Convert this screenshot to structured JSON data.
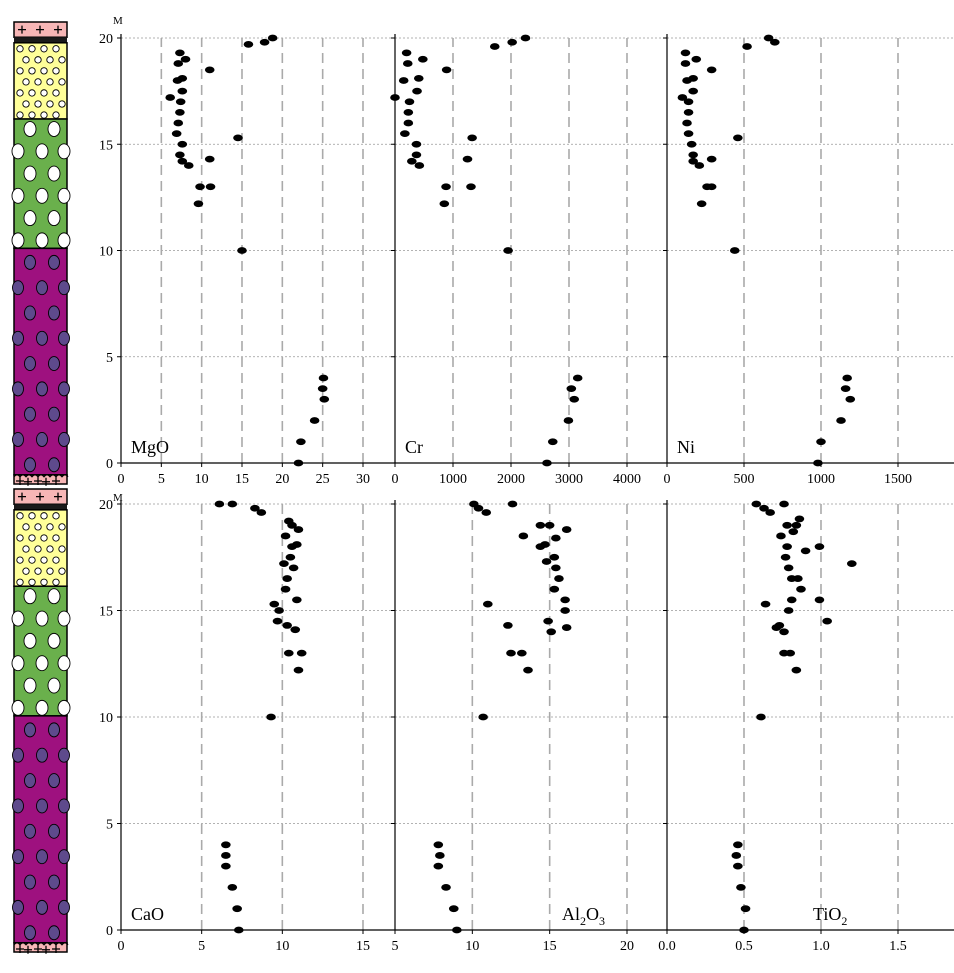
{
  "depth_unit": "M",
  "colors": {
    "grid": "#aaaaaa",
    "ygrid": "#999999",
    "point": "#000000",
    "granite": "#f7b6b6",
    "dark_band": "#1a1a1a",
    "yellow": "#ffff99",
    "green": "#6ab04c",
    "magenta": "#9e117f",
    "magenta_dot": "#5e4a8c"
  },
  "chart_data": [
    {
      "type": "scatter",
      "label": "MgO",
      "xlim": [
        0,
        30
      ],
      "xticks": [
        0,
        5,
        10,
        15,
        20,
        25,
        30
      ],
      "xtick_labels": [
        "0",
        "5",
        "10",
        "15",
        "20",
        "25",
        "30"
      ],
      "ylim": [
        0,
        20
      ],
      "yticks": [
        0,
        5,
        10,
        15,
        20
      ],
      "points": [
        [
          22,
          0
        ],
        [
          22.3,
          1
        ],
        [
          24,
          2
        ],
        [
          25.2,
          3
        ],
        [
          25,
          3.5
        ],
        [
          25.1,
          4
        ],
        [
          15,
          10
        ],
        [
          9.6,
          12.2
        ],
        [
          9.8,
          13
        ],
        [
          11.1,
          13
        ],
        [
          8.4,
          14
        ],
        [
          7.6,
          14.2
        ],
        [
          11,
          14.3
        ],
        [
          7.3,
          14.5
        ],
        [
          7.6,
          15
        ],
        [
          14.5,
          15.3
        ],
        [
          6.9,
          15.5
        ],
        [
          7.1,
          16
        ],
        [
          7.3,
          16.5
        ],
        [
          7.4,
          17
        ],
        [
          6.1,
          17.2
        ],
        [
          7.6,
          17.5
        ],
        [
          7,
          18
        ],
        [
          7.6,
          18.1
        ],
        [
          11,
          18.5
        ],
        [
          7.1,
          18.8
        ],
        [
          8,
          19
        ],
        [
          7.3,
          19.3
        ],
        [
          15.8,
          19.7
        ],
        [
          17.8,
          19.8
        ],
        [
          18.8,
          20
        ]
      ]
    },
    {
      "type": "scatter",
      "label": "Cr",
      "xlim": [
        0,
        4000
      ],
      "xticks": [
        0,
        1000,
        2000,
        3000,
        4000
      ],
      "xtick_labels": [
        "0",
        "1000",
        "2000",
        "3000",
        "4000"
      ],
      "ylim": [
        0,
        20
      ],
      "yticks": [
        0,
        5,
        10,
        15,
        20
      ],
      "points": [
        [
          2620,
          0
        ],
        [
          2720,
          1
        ],
        [
          2990,
          2
        ],
        [
          3090,
          3
        ],
        [
          3040,
          3.5
        ],
        [
          3150,
          4
        ],
        [
          1950,
          10
        ],
        [
          850,
          12.2
        ],
        [
          880,
          13
        ],
        [
          1310,
          13
        ],
        [
          420,
          14
        ],
        [
          290,
          14.2
        ],
        [
          1250,
          14.3
        ],
        [
          370,
          14.5
        ],
        [
          370,
          15
        ],
        [
          1330,
          15.3
        ],
        [
          170,
          15.5
        ],
        [
          230,
          16
        ],
        [
          230,
          16.5
        ],
        [
          250,
          17
        ],
        [
          0,
          17.2
        ],
        [
          380,
          17.5
        ],
        [
          150,
          18
        ],
        [
          410,
          18.1
        ],
        [
          890,
          18.5
        ],
        [
          220,
          18.8
        ],
        [
          480,
          19
        ],
        [
          200,
          19.3
        ],
        [
          1720,
          19.6
        ],
        [
          2020,
          19.8
        ],
        [
          2250,
          20
        ]
      ]
    },
    {
      "type": "scatter",
      "label": "Ni",
      "xlim": [
        0,
        1500
      ],
      "xticks": [
        0,
        500,
        1000,
        1500
      ],
      "xtick_labels": [
        "0",
        "500",
        "1000",
        "1500"
      ],
      "ylim": [
        0,
        20
      ],
      "yticks": [
        0,
        5,
        10,
        15,
        20
      ],
      "points": [
        [
          980,
          0
        ],
        [
          1000,
          1
        ],
        [
          1130,
          2
        ],
        [
          1190,
          3
        ],
        [
          1160,
          3.5
        ],
        [
          1170,
          4
        ],
        [
          440,
          10
        ],
        [
          225,
          12.2
        ],
        [
          260,
          13
        ],
        [
          290,
          13
        ],
        [
          210,
          14
        ],
        [
          170,
          14.2
        ],
        [
          290,
          14.3
        ],
        [
          170,
          14.5
        ],
        [
          160,
          15
        ],
        [
          460,
          15.3
        ],
        [
          140,
          15.5
        ],
        [
          130,
          16
        ],
        [
          140,
          16.5
        ],
        [
          140,
          17
        ],
        [
          100,
          17.2
        ],
        [
          170,
          17.5
        ],
        [
          130,
          18
        ],
        [
          170,
          18.1
        ],
        [
          290,
          18.5
        ],
        [
          120,
          18.8
        ],
        [
          190,
          19
        ],
        [
          120,
          19.3
        ],
        [
          520,
          19.6
        ],
        [
          660,
          20
        ],
        [
          700,
          19.8
        ]
      ]
    },
    {
      "type": "scatter",
      "label": "CaO",
      "xlim": [
        0,
        15
      ],
      "xticks": [
        0,
        5,
        10,
        15
      ],
      "xtick_labels": [
        "0",
        "5",
        "10",
        "15"
      ],
      "ylim": [
        0,
        20
      ],
      "yticks": [
        0,
        5,
        10,
        15,
        20
      ],
      "points": [
        [
          7.3,
          0
        ],
        [
          7.2,
          1
        ],
        [
          6.9,
          2
        ],
        [
          6.5,
          3
        ],
        [
          6.5,
          3.5
        ],
        [
          6.5,
          4
        ],
        [
          9.3,
          10
        ],
        [
          11,
          12.2
        ],
        [
          10.4,
          13
        ],
        [
          11.2,
          13
        ],
        [
          10.8,
          14.1
        ],
        [
          10.3,
          14.3
        ],
        [
          9.7,
          14.5
        ],
        [
          9.8,
          15
        ],
        [
          9.5,
          15.3
        ],
        [
          10.9,
          15.5
        ],
        [
          10.2,
          16
        ],
        [
          10.3,
          16.5
        ],
        [
          10.7,
          17
        ],
        [
          10.1,
          17.2
        ],
        [
          10.5,
          17.5
        ],
        [
          10.6,
          18
        ],
        [
          10.9,
          18.1
        ],
        [
          10.2,
          18.5
        ],
        [
          11,
          18.8
        ],
        [
          10.6,
          19
        ],
        [
          10.4,
          19.2
        ],
        [
          6.1,
          20
        ],
        [
          6.9,
          20
        ],
        [
          8.3,
          19.8
        ],
        [
          8.7,
          19.6
        ]
      ]
    },
    {
      "type": "scatter",
      "label": "Al₂O₃",
      "xlim": [
        5,
        20
      ],
      "xticks": [
        5,
        10,
        15,
        20
      ],
      "xtick_labels": [
        "5",
        "10",
        "15",
        "20"
      ],
      "ylim": [
        0,
        20
      ],
      "yticks": [
        0,
        5,
        10,
        15,
        20
      ],
      "points": [
        [
          9,
          0
        ],
        [
          8.8,
          1
        ],
        [
          8.3,
          2
        ],
        [
          7.8,
          3
        ],
        [
          7.9,
          3.5
        ],
        [
          7.8,
          4
        ],
        [
          10.7,
          10
        ],
        [
          13.6,
          12.2
        ],
        [
          12.5,
          13
        ],
        [
          13.2,
          13
        ],
        [
          15.1,
          14
        ],
        [
          16.1,
          14.2
        ],
        [
          12.3,
          14.3
        ],
        [
          14.9,
          14.5
        ],
        [
          16,
          15
        ],
        [
          11,
          15.3
        ],
        [
          16,
          15.5
        ],
        [
          15.3,
          16
        ],
        [
          15.6,
          16.5
        ],
        [
          15.4,
          17
        ],
        [
          14.8,
          17.3
        ],
        [
          15.3,
          17.5
        ],
        [
          14.4,
          18
        ],
        [
          14.7,
          18.1
        ],
        [
          15.4,
          18.4
        ],
        [
          13.3,
          18.5
        ],
        [
          16.1,
          18.8
        ],
        [
          14.4,
          19
        ],
        [
          15,
          19
        ],
        [
          12.6,
          20
        ],
        [
          10.1,
          20
        ],
        [
          10.4,
          19.8
        ],
        [
          10.9,
          19.6
        ]
      ]
    },
    {
      "type": "scatter",
      "label": "TiO₂",
      "xlim": [
        0,
        1.5
      ],
      "xticks": [
        0,
        0.5,
        1.0,
        1.5
      ],
      "xtick_labels": [
        "0.0",
        "0.5",
        "1.0",
        "1.5"
      ],
      "ylim": [
        0,
        20
      ],
      "yticks": [
        0,
        5,
        10,
        15,
        20
      ],
      "points": [
        [
          0.5,
          0
        ],
        [
          0.51,
          1
        ],
        [
          0.48,
          2
        ],
        [
          0.46,
          3
        ],
        [
          0.45,
          3.5
        ],
        [
          0.46,
          4
        ],
        [
          0.61,
          10
        ],
        [
          0.84,
          12.2
        ],
        [
          0.76,
          13
        ],
        [
          0.8,
          13
        ],
        [
          0.76,
          14
        ],
        [
          0.71,
          14.2
        ],
        [
          0.73,
          14.3
        ],
        [
          1.04,
          14.5
        ],
        [
          0.79,
          15
        ],
        [
          0.64,
          15.3
        ],
        [
          0.99,
          15.5
        ],
        [
          0.81,
          15.5
        ],
        [
          0.87,
          16
        ],
        [
          0.81,
          16.5
        ],
        [
          0.85,
          16.5
        ],
        [
          0.79,
          17
        ],
        [
          1.2,
          17.2
        ],
        [
          0.77,
          17.5
        ],
        [
          0.9,
          17.8
        ],
        [
          0.78,
          18
        ],
        [
          0.99,
          18
        ],
        [
          0.74,
          18.5
        ],
        [
          0.82,
          18.7
        ],
        [
          0.78,
          19
        ],
        [
          0.84,
          19
        ],
        [
          0.86,
          19.3
        ],
        [
          0.76,
          20
        ],
        [
          0.58,
          20
        ],
        [
          0.63,
          19.8
        ],
        [
          0.67,
          19.6
        ]
      ]
    }
  ]
}
